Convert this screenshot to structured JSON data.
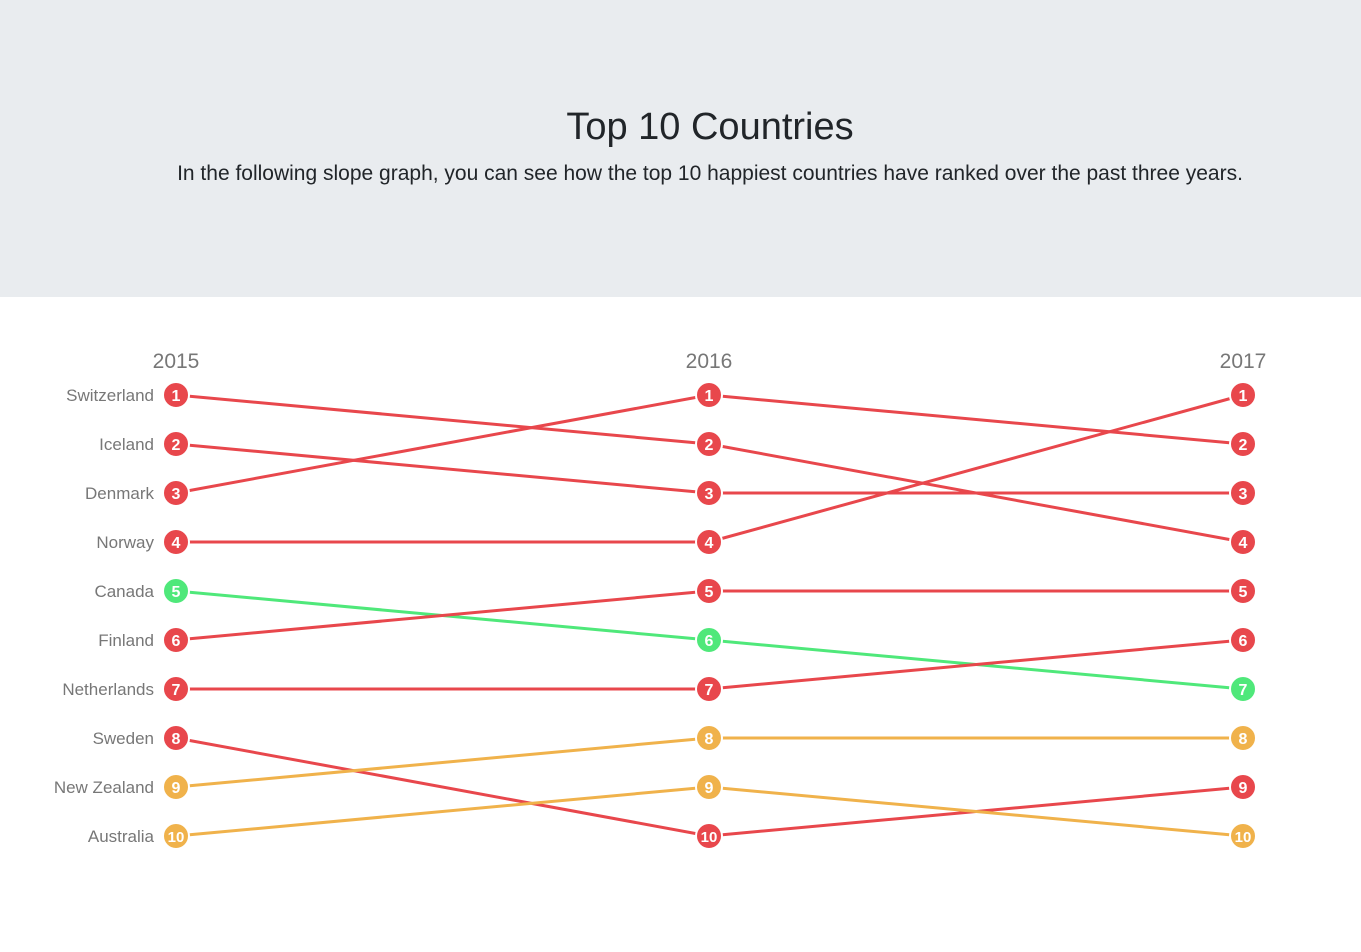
{
  "header": {
    "title": "Top 10 Countries",
    "subtitle": "In the following slope graph, you can see how the top 10 happiest countries have ranked over the past three years."
  },
  "colors": {
    "drop": "#e8474c",
    "rise_green": "#4fe87a",
    "rise_orange": "#f0b24b",
    "label": "#777777",
    "header_bg": "#e9ecef"
  },
  "chart_data": {
    "type": "slope",
    "title": "Top 10 Countries",
    "x": [
      "2015",
      "2016",
      "2017"
    ],
    "y_label_order": [
      "Switzerland",
      "Iceland",
      "Denmark",
      "Norway",
      "Canada",
      "Finland",
      "Netherlands",
      "Sweden",
      "New Zealand",
      "Australia"
    ],
    "series": [
      {
        "name": "Switzerland",
        "ranks": [
          1,
          2,
          4
        ],
        "color": "#e8474c"
      },
      {
        "name": "Iceland",
        "ranks": [
          2,
          3,
          3
        ],
        "color": "#e8474c"
      },
      {
        "name": "Denmark",
        "ranks": [
          3,
          1,
          2
        ],
        "color": "#e8474c"
      },
      {
        "name": "Norway",
        "ranks": [
          4,
          4,
          1
        ],
        "color": "#e8474c"
      },
      {
        "name": "Canada",
        "ranks": [
          5,
          6,
          7
        ],
        "color": "#4fe87a"
      },
      {
        "name": "Finland",
        "ranks": [
          6,
          5,
          5
        ],
        "color": "#e8474c"
      },
      {
        "name": "Netherlands",
        "ranks": [
          7,
          7,
          6
        ],
        "color": "#e8474c"
      },
      {
        "name": "Sweden",
        "ranks": [
          8,
          10,
          9
        ],
        "color": "#e8474c"
      },
      {
        "name": "New Zealand",
        "ranks": [
          9,
          8,
          8
        ],
        "color": "#f0b24b"
      },
      {
        "name": "Australia",
        "ranks": [
          10,
          9,
          10
        ],
        "color": "#f0b24b"
      }
    ],
    "y_range": [
      1,
      10
    ]
  }
}
